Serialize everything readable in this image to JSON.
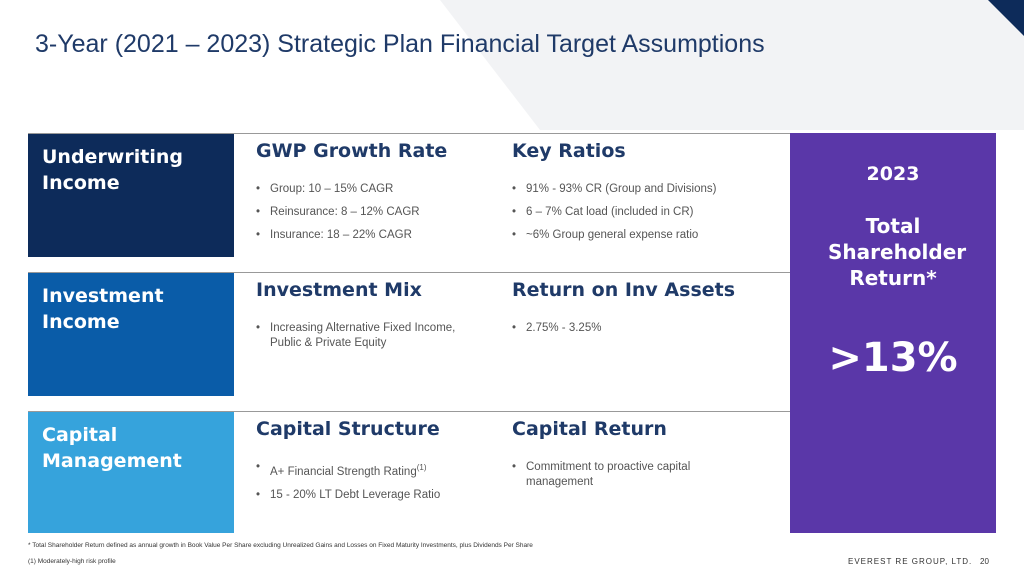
{
  "title": "3-Year (2021 – 2023) Strategic Plan Financial Target Assumptions",
  "rows": [
    {
      "label": "Underwriting Income",
      "columns": [
        {
          "heading": "GWP Growth Rate",
          "bullets": [
            {
              "text": "Group: 10 – 15% CAGR"
            },
            {
              "text": "Reinsurance: 8 – 12% CAGR"
            },
            {
              "text": "Insurance: 18 – 22% CAGR"
            }
          ]
        },
        {
          "heading": "Key Ratios",
          "bullets": [
            {
              "text": "91% - 93% CR (Group and Divisions)"
            },
            {
              "text": "6 – 7% Cat load (included in CR)"
            },
            {
              "text": "~6% Group general expense ratio"
            }
          ]
        }
      ]
    },
    {
      "label": "Investment Income",
      "columns": [
        {
          "heading": "Investment Mix",
          "bullets": [
            {
              "text": "Increasing Alternative Fixed Income, Public & Private Equity"
            }
          ]
        },
        {
          "heading": "Return on Inv Assets",
          "bullets": [
            {
              "text": "2.75% - 3.25%"
            }
          ]
        }
      ]
    },
    {
      "label": "Capital Management",
      "columns": [
        {
          "heading": "Capital Structure",
          "bullets": [
            {
              "text": "A+ Financial Strength Rating",
              "superscript": "(1)"
            },
            {
              "text": "15 - 20% LT Debt Leverage Ratio"
            }
          ]
        },
        {
          "heading": "Capital Return",
          "bullets": [
            {
              "text": "Commitment to proactive capital management"
            }
          ]
        }
      ]
    }
  ],
  "highlight": {
    "year": "2023",
    "label": "Total Shareholder Return*",
    "value": ">13%"
  },
  "footnotes": [
    "* Total Shareholder Return defined as annual growth in Book Value Per Share excluding Unrealized Gains and Losses on Fixed Maturity Investments, plus Dividends Per Share",
    "(1) Moderately-high risk profile"
  ],
  "footer": {
    "company": "EVEREST RE GROUP, LTD.",
    "page": "20"
  }
}
